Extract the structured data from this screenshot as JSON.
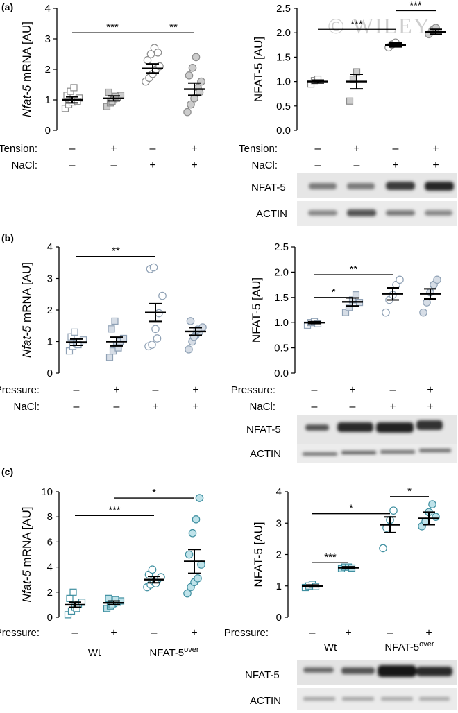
{
  "figure": {
    "watermark": "© WILEY",
    "panel_labels": [
      "(a)",
      "(b)",
      "(c)"
    ],
    "row_labels": {
      "tension": "Tension:",
      "pressure": "Pressure:",
      "nacl": "NaCl:"
    },
    "signs": {
      "minus": "–",
      "plus": "+"
    },
    "group_labels": {
      "wt": "Wt",
      "over_base": "NFAT-5",
      "over_sup": "over"
    },
    "blot_labels": {
      "nfat5": "NFAT-5",
      "actin": "ACTIN"
    }
  },
  "colors": {
    "tension_fill": "#cccccc",
    "tension_stroke": "#8c8c8c",
    "pressure_fill": "#d6dde6",
    "pressure_stroke": "#8fa1b5",
    "nfat_fill": "#bfe3ea",
    "nfat_stroke": "#3f8fa0"
  },
  "chart_data": [
    {
      "id": "a-left",
      "type": "scatter",
      "ylabel_italic": "Nfat-5",
      "ylabel_rest": " mRNA [AU]",
      "ylim": [
        0,
        4
      ],
      "yticks": [
        "0",
        "1",
        "2",
        "3",
        "4"
      ],
      "conditions": [
        "Tension",
        "NaCl"
      ],
      "categories": [
        {
          "tension": "–",
          "nacl": "–",
          "mean": 1.0,
          "sem": 0.1,
          "points": [
            0.72,
            0.85,
            0.93,
            1.0,
            1.06,
            1.15,
            1.28,
            1.4,
            0.95
          ]
        },
        {
          "tension": "+",
          "nacl": "–",
          "mean": 1.05,
          "sem": 0.08,
          "points": [
            0.78,
            0.9,
            1.0,
            1.08,
            1.15,
            1.25,
            0.95,
            1.12
          ]
        },
        {
          "tension": "–",
          "nacl": "+",
          "mean": 2.03,
          "sem": 0.15,
          "points": [
            1.6,
            1.72,
            1.85,
            2.0,
            2.1,
            2.3,
            2.5,
            2.7,
            2.55
          ]
        },
        {
          "tension": "+",
          "nacl": "+",
          "mean": 1.35,
          "sem": 0.2,
          "points": [
            0.6,
            0.85,
            1.05,
            1.4,
            1.6,
            1.8,
            2.05,
            2.4,
            1.25
          ]
        }
      ],
      "significance": [
        {
          "from": 0,
          "to": 2,
          "y": 3.2,
          "label": "***"
        },
        {
          "from": 2,
          "to": 3,
          "y": 3.2,
          "label": "**"
        }
      ]
    },
    {
      "id": "a-right",
      "type": "scatter",
      "ylabel": "NFAT-5 [AU]",
      "ylim": [
        0,
        2.5
      ],
      "yticks": [
        "0.0",
        "0.5",
        "1.0",
        "1.5",
        "2.0",
        "2.5"
      ],
      "conditions": [
        "Tension",
        "NaCl"
      ],
      "categories": [
        {
          "tension": "–",
          "nacl": "–",
          "mean": 1.0,
          "sem": 0.03,
          "points": [
            0.95,
            1.02,
            1.05
          ]
        },
        {
          "tension": "+",
          "nacl": "–",
          "mean": 1.0,
          "sem": 0.15,
          "points": [
            0.6,
            1.05,
            1.2
          ]
        },
        {
          "tension": "–",
          "nacl": "+",
          "mean": 1.75,
          "sem": 0.04,
          "points": [
            1.7,
            1.76,
            1.8
          ]
        },
        {
          "tension": "+",
          "nacl": "+",
          "mean": 2.02,
          "sem": 0.05,
          "points": [
            1.97,
            2.05,
            2.1
          ]
        }
      ],
      "significance": [
        {
          "from": 0,
          "to": 2,
          "y": 2.07,
          "label": "***"
        },
        {
          "from": 2,
          "to": 3,
          "y": 2.45,
          "label": "***"
        }
      ]
    },
    {
      "id": "b-left",
      "type": "scatter",
      "ylabel_italic": "Nfat-5",
      "ylabel_rest": " mRNA [AU]",
      "ylim": [
        0,
        4
      ],
      "yticks": [
        "0",
        "1",
        "2",
        "3",
        "4"
      ],
      "conditions": [
        "Pressure",
        "NaCl"
      ],
      "categories": [
        {
          "pressure": "–",
          "nacl": "–",
          "mean": 0.98,
          "sem": 0.1,
          "points": [
            0.7,
            0.85,
            0.95,
            1.0,
            1.05,
            1.15,
            1.3,
            0.9
          ]
        },
        {
          "pressure": "+",
          "nacl": "–",
          "mean": 1.0,
          "sem": 0.14,
          "points": [
            0.5,
            0.7,
            0.9,
            1.0,
            1.1,
            1.4,
            1.65,
            0.8
          ]
        },
        {
          "pressure": "–",
          "nacl": "+",
          "mean": 1.92,
          "sem": 0.28,
          "points": [
            0.85,
            0.9,
            1.4,
            1.9,
            2.45,
            3.3,
            3.35,
            1.1
          ]
        },
        {
          "pressure": "+",
          "nacl": "+",
          "mean": 1.32,
          "sem": 0.12,
          "points": [
            0.75,
            1.0,
            1.2,
            1.3,
            1.45,
            1.65,
            1.15,
            1.38
          ]
        }
      ],
      "significance": [
        {
          "from": 0,
          "to": 2,
          "y": 3.7,
          "label": "**"
        }
      ]
    },
    {
      "id": "b-right",
      "type": "scatter",
      "ylabel": "NFAT-5 [AU]",
      "ylim": [
        0,
        2.5
      ],
      "yticks": [
        "0.0",
        "0.5",
        "1.0",
        "1.5",
        "2.0",
        "2.5"
      ],
      "conditions": [
        "Pressure",
        "NaCl"
      ],
      "categories": [
        {
          "pressure": "–",
          "nacl": "–",
          "mean": 1.0,
          "sem": 0.02,
          "points": [
            0.95,
            1.0,
            1.02,
            0.98
          ]
        },
        {
          "pressure": "+",
          "nacl": "–",
          "mean": 1.41,
          "sem": 0.08,
          "points": [
            1.2,
            1.3,
            1.45,
            1.55,
            1.4
          ]
        },
        {
          "pressure": "–",
          "nacl": "+",
          "mean": 1.57,
          "sem": 0.12,
          "points": [
            1.2,
            1.45,
            1.55,
            1.75,
            1.85
          ]
        },
        {
          "pressure": "+",
          "nacl": "+",
          "mean": 1.57,
          "sem": 0.1,
          "points": [
            1.2,
            1.4,
            1.6,
            1.75,
            1.85
          ]
        }
      ],
      "significance": [
        {
          "from": 0,
          "to": 1,
          "y": 1.5,
          "label": "*"
        },
        {
          "from": 0,
          "to": 2,
          "y": 1.95,
          "label": "**"
        }
      ]
    },
    {
      "id": "c-left",
      "type": "scatter",
      "ylabel_italic": "Nfat-5",
      "ylabel_rest": " mRNA [AU]",
      "ylim": [
        0,
        10
      ],
      "yticks": [
        "0",
        "2",
        "4",
        "6",
        "8",
        "10"
      ],
      "conditions": [
        "Pressure"
      ],
      "categories": [
        {
          "pressure": "–",
          "mean": 1.0,
          "sem": 0.2,
          "points": [
            0.2,
            0.5,
            0.8,
            1.0,
            1.2,
            1.5,
            2.0,
            0.7
          ]
        },
        {
          "pressure": "+",
          "mean": 1.15,
          "sem": 0.15,
          "points": [
            0.7,
            0.9,
            1.1,
            1.2,
            1.3,
            1.5,
            1.0,
            1.4
          ]
        },
        {
          "pressure": "–",
          "mean": 3.0,
          "sem": 0.25,
          "points": [
            2.4,
            2.6,
            2.8,
            3.0,
            3.2,
            3.4,
            3.8,
            2.7
          ]
        },
        {
          "pressure": "+",
          "mean": 4.45,
          "sem": 0.95,
          "points": [
            1.9,
            2.4,
            2.8,
            3.1,
            4.2,
            5.0,
            6.7,
            7.8,
            9.5
          ]
        }
      ],
      "groups": [
        {
          "label": "Wt",
          "cats": [
            0,
            1
          ]
        },
        {
          "label": "NFAT-5 over",
          "cats": [
            2,
            3
          ]
        }
      ],
      "significance": [
        {
          "from": 0,
          "to": 2,
          "y": 8.1,
          "label": "***"
        },
        {
          "from": 1,
          "to": 3,
          "y": 9.5,
          "label": "*"
        }
      ]
    },
    {
      "id": "c-right",
      "type": "scatter",
      "ylabel": "NFAT-5 [AU]",
      "ylim": [
        0,
        4
      ],
      "yticks": [
        "0",
        "1",
        "2",
        "3",
        "4"
      ],
      "conditions": [
        "Pressure"
      ],
      "categories": [
        {
          "pressure": "–",
          "mean": 1.0,
          "sem": 0.03,
          "points": [
            0.95,
            1.0,
            1.05,
            0.98
          ]
        },
        {
          "pressure": "+",
          "mean": 1.58,
          "sem": 0.03,
          "points": [
            1.55,
            1.6,
            1.6,
            1.57
          ]
        },
        {
          "pressure": "–",
          "mean": 2.95,
          "sem": 0.25,
          "points": [
            2.2,
            2.85,
            3.1,
            3.4
          ]
        },
        {
          "pressure": "+",
          "mean": 3.15,
          "sem": 0.2,
          "points": [
            2.9,
            3.05,
            3.35,
            3.6,
            3.2
          ]
        }
      ],
      "groups": [
        {
          "label": "Wt",
          "cats": [
            0,
            1
          ]
        },
        {
          "label": "NFAT-5 over",
          "cats": [
            2,
            3
          ]
        }
      ],
      "significance": [
        {
          "from": 0,
          "to": 1,
          "y": 1.75,
          "label": "***"
        },
        {
          "from": 0,
          "to": 2,
          "y": 3.3,
          "label": "*"
        },
        {
          "from": 2,
          "to": 3,
          "y": 3.85,
          "label": "*"
        }
      ]
    }
  ]
}
